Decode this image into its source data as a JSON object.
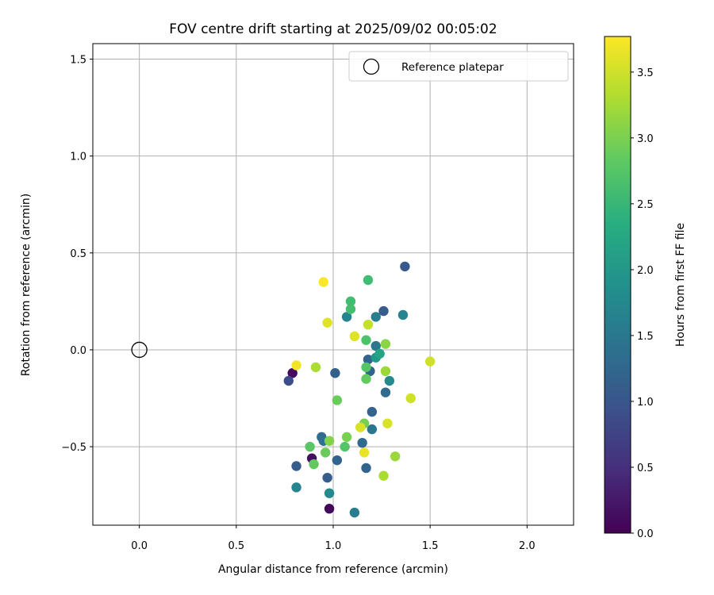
{
  "chart_data": {
    "type": "scatter",
    "title": "FOV centre drift starting at 2025/09/02 00:05:02",
    "xlabel": "Angular distance from reference (arcmin)",
    "ylabel": "Rotation from reference (arcmin)",
    "xlim": [
      -0.24,
      2.24
    ],
    "ylim": [
      -0.905,
      1.58
    ],
    "xticks": [
      0.0,
      0.5,
      1.0,
      1.5,
      2.0
    ],
    "xtick_labels": [
      "0.0",
      "0.5",
      "1.0",
      "1.5",
      "2.0"
    ],
    "yticks": [
      -0.5,
      0.0,
      0.5,
      1.0,
      1.5
    ],
    "ytick_labels": [
      "−0.5",
      "0.0",
      "0.5",
      "1.0",
      "1.5"
    ],
    "grid": true,
    "legend": {
      "placement": "top-right",
      "entries": [
        "Reference platepar"
      ]
    },
    "reference_point": {
      "name": "Reference platepar",
      "x": 0.0,
      "y": 0.0,
      "marker": "open-circle"
    },
    "colorbar": {
      "label": "Hours from first FF file",
      "colormap": "viridis",
      "range": [
        0.0,
        3.77
      ],
      "ticks": [
        0.0,
        0.5,
        1.0,
        1.5,
        2.0,
        2.5,
        3.0,
        3.5
      ],
      "tick_labels": [
        "0.0",
        "0.5",
        "1.0",
        "1.5",
        "2.0",
        "2.5",
        "3.0",
        "3.5"
      ]
    },
    "points": [
      {
        "x": 0.98,
        "y": -0.82,
        "c": 0.05
      },
      {
        "x": 0.79,
        "y": -0.12,
        "c": 0.1
      },
      {
        "x": 0.89,
        "y": -0.56,
        "c": 0.15
      },
      {
        "x": 0.77,
        "y": -0.16,
        "c": 0.9
      },
      {
        "x": 1.37,
        "y": 0.43,
        "c": 1.05
      },
      {
        "x": 1.26,
        "y": 0.2,
        "c": 1.1
      },
      {
        "x": 1.01,
        "y": -0.12,
        "c": 1.15
      },
      {
        "x": 1.18,
        "y": -0.05,
        "c": 1.2
      },
      {
        "x": 1.19,
        "y": -0.11,
        "c": 1.2
      },
      {
        "x": 1.2,
        "y": -0.32,
        "c": 1.2
      },
      {
        "x": 1.27,
        "y": -0.22,
        "c": 1.3
      },
      {
        "x": 0.81,
        "y": -0.6,
        "c": 1.1
      },
      {
        "x": 0.97,
        "y": -0.66,
        "c": 1.1
      },
      {
        "x": 1.02,
        "y": -0.57,
        "c": 1.2
      },
      {
        "x": 1.17,
        "y": -0.61,
        "c": 1.2
      },
      {
        "x": 1.15,
        "y": -0.48,
        "c": 1.3
      },
      {
        "x": 0.94,
        "y": -0.45,
        "c": 1.3
      },
      {
        "x": 0.95,
        "y": -0.47,
        "c": 1.4
      },
      {
        "x": 1.2,
        "y": -0.41,
        "c": 1.5
      },
      {
        "x": 1.22,
        "y": 0.02,
        "c": 1.5
      },
      {
        "x": 1.11,
        "y": -0.84,
        "c": 1.6
      },
      {
        "x": 0.81,
        "y": -0.71,
        "c": 1.7
      },
      {
        "x": 0.98,
        "y": -0.74,
        "c": 1.8
      },
      {
        "x": 1.07,
        "y": 0.17,
        "c": 1.7
      },
      {
        "x": 1.22,
        "y": 0.17,
        "c": 1.6
      },
      {
        "x": 1.36,
        "y": 0.18,
        "c": 1.7
      },
      {
        "x": 1.29,
        "y": -0.16,
        "c": 1.8
      },
      {
        "x": 1.22,
        "y": -0.04,
        "c": 2.0
      },
      {
        "x": 1.24,
        "y": -0.02,
        "c": 2.2
      },
      {
        "x": 1.18,
        "y": 0.36,
        "c": 2.6
      },
      {
        "x": 1.09,
        "y": 0.25,
        "c": 2.6
      },
      {
        "x": 1.09,
        "y": 0.21,
        "c": 2.65
      },
      {
        "x": 1.17,
        "y": 0.05,
        "c": 2.7
      },
      {
        "x": 1.17,
        "y": -0.09,
        "c": 2.75
      },
      {
        "x": 1.17,
        "y": -0.15,
        "c": 2.85
      },
      {
        "x": 1.06,
        "y": -0.5,
        "c": 2.75
      },
      {
        "x": 0.88,
        "y": -0.5,
        "c": 2.8
      },
      {
        "x": 0.9,
        "y": -0.59,
        "c": 2.85
      },
      {
        "x": 0.96,
        "y": -0.53,
        "c": 2.9
      },
      {
        "x": 1.02,
        "y": -0.26,
        "c": 2.9
      },
      {
        "x": 1.16,
        "y": -0.38,
        "c": 3.0
      },
      {
        "x": 1.07,
        "y": -0.45,
        "c": 3.0
      },
      {
        "x": 0.98,
        "y": -0.47,
        "c": 3.05
      },
      {
        "x": 1.27,
        "y": 0.03,
        "c": 3.1
      },
      {
        "x": 1.27,
        "y": -0.11,
        "c": 3.2
      },
      {
        "x": 1.32,
        "y": -0.55,
        "c": 3.2
      },
      {
        "x": 1.26,
        "y": -0.65,
        "c": 3.3
      },
      {
        "x": 0.91,
        "y": -0.09,
        "c": 3.3
      },
      {
        "x": 1.18,
        "y": 0.13,
        "c": 3.45
      },
      {
        "x": 1.5,
        "y": -0.06,
        "c": 3.5
      },
      {
        "x": 1.4,
        "y": -0.25,
        "c": 3.5
      },
      {
        "x": 1.28,
        "y": -0.38,
        "c": 3.55
      },
      {
        "x": 1.14,
        "y": -0.4,
        "c": 3.55
      },
      {
        "x": 0.97,
        "y": 0.14,
        "c": 3.6
      },
      {
        "x": 1.11,
        "y": 0.07,
        "c": 3.6
      },
      {
        "x": 1.16,
        "y": -0.53,
        "c": 3.65
      },
      {
        "x": 0.81,
        "y": -0.08,
        "c": 3.7
      },
      {
        "x": 0.95,
        "y": 0.35,
        "c": 3.75
      }
    ]
  }
}
